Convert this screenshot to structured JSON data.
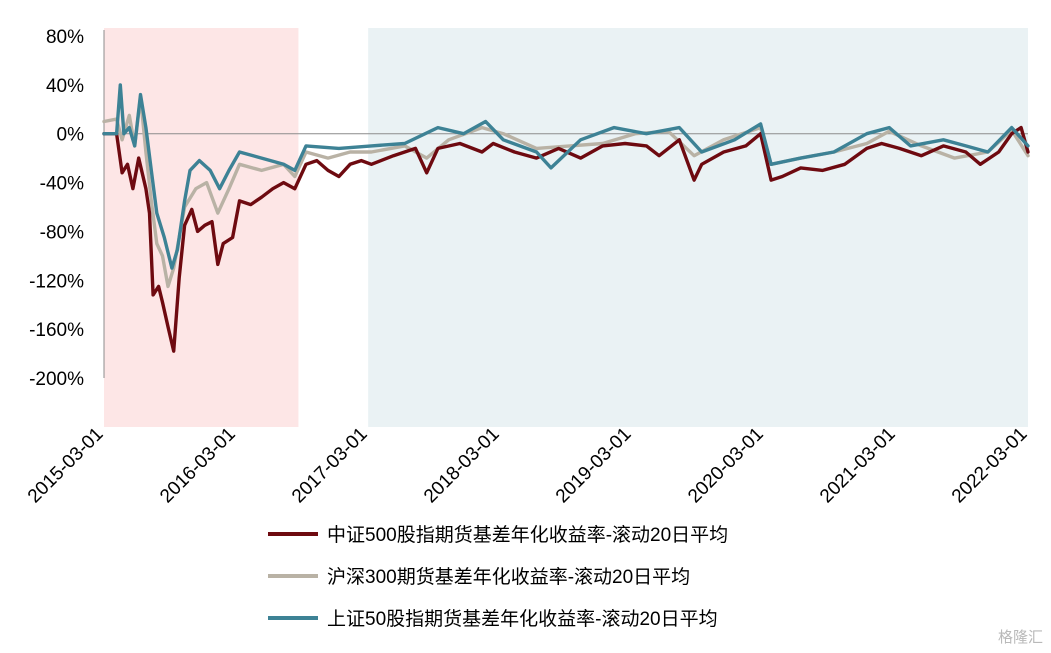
{
  "chart_data": {
    "type": "line",
    "title": "",
    "xlabel": "",
    "ylabel": "",
    "x_start": "2015-03-01",
    "x_end": "2022-03-01",
    "ylim": [
      -200,
      80
    ],
    "y_ticks": [
      80,
      40,
      0,
      -40,
      -80,
      -120,
      -160,
      -200
    ],
    "y_tick_labels": [
      "80%",
      "40%",
      "0%",
      "-40%",
      "-80%",
      "-120%",
      "-160%",
      "-200%"
    ],
    "x_tick_labels": [
      "2015-03-01",
      "2016-03-01",
      "2017-03-01",
      "2018-03-01",
      "2019-03-01",
      "2020-03-01",
      "2021-03-01",
      "2022-03-01"
    ],
    "shaded_regions": [
      {
        "start": "2015-03-01",
        "end": "2016-08-20",
        "color": "#fde6e6"
      },
      {
        "start": "2017-03-01",
        "end": "2022-03-01",
        "color": "#eaf2f4"
      }
    ],
    "legend_position": "bottom",
    "series": [
      {
        "name": "中证500股指期货基差年化收益率-滚动20日平均",
        "color": "#6e0a10",
        "points": [
          [
            "2015-03-01",
            0
          ],
          [
            "2015-04-05",
            0
          ],
          [
            "2015-04-20",
            -32
          ],
          [
            "2015-05-05",
            -25
          ],
          [
            "2015-05-20",
            -45
          ],
          [
            "2015-06-05",
            -20
          ],
          [
            "2015-06-25",
            -45
          ],
          [
            "2015-07-05",
            -65
          ],
          [
            "2015-07-15",
            -132
          ],
          [
            "2015-07-30",
            -125
          ],
          [
            "2015-08-10",
            -138
          ],
          [
            "2015-08-25",
            -158
          ],
          [
            "2015-09-10",
            -178
          ],
          [
            "2015-09-25",
            -118
          ],
          [
            "2015-10-10",
            -75
          ],
          [
            "2015-10-30",
            -62
          ],
          [
            "2015-11-15",
            -80
          ],
          [
            "2015-12-05",
            -75
          ],
          [
            "2015-12-25",
            -72
          ],
          [
            "2016-01-10",
            -107
          ],
          [
            "2016-01-25",
            -90
          ],
          [
            "2016-02-20",
            -85
          ],
          [
            "2016-03-10",
            -55
          ],
          [
            "2016-04-10",
            -58
          ],
          [
            "2016-05-10",
            -52
          ],
          [
            "2016-06-10",
            -45
          ],
          [
            "2016-07-10",
            -40
          ],
          [
            "2016-08-10",
            -45
          ],
          [
            "2016-09-10",
            -25
          ],
          [
            "2016-10-10",
            -22
          ],
          [
            "2016-11-10",
            -30
          ],
          [
            "2016-12-10",
            -35
          ],
          [
            "2017-01-10",
            -25
          ],
          [
            "2017-02-10",
            -22
          ],
          [
            "2017-03-10",
            -25
          ],
          [
            "2017-05-10",
            -18
          ],
          [
            "2017-07-10",
            -12
          ],
          [
            "2017-08-10",
            -32
          ],
          [
            "2017-09-10",
            -12
          ],
          [
            "2017-11-10",
            -8
          ],
          [
            "2018-01-10",
            -15
          ],
          [
            "2018-02-10",
            -8
          ],
          [
            "2018-04-10",
            -15
          ],
          [
            "2018-06-10",
            -20
          ],
          [
            "2018-08-10",
            -12
          ],
          [
            "2018-10-10",
            -20
          ],
          [
            "2018-12-10",
            -10
          ],
          [
            "2019-02-10",
            -8
          ],
          [
            "2019-04-10",
            -10
          ],
          [
            "2019-05-15",
            -18
          ],
          [
            "2019-07-10",
            -5
          ],
          [
            "2019-08-20",
            -38
          ],
          [
            "2019-09-10",
            -25
          ],
          [
            "2019-11-10",
            -15
          ],
          [
            "2020-01-10",
            -10
          ],
          [
            "2020-02-20",
            0
          ],
          [
            "2020-03-20",
            -38
          ],
          [
            "2020-04-20",
            -35
          ],
          [
            "2020-06-10",
            -28
          ],
          [
            "2020-08-10",
            -30
          ],
          [
            "2020-10-10",
            -25
          ],
          [
            "2020-12-10",
            -12
          ],
          [
            "2021-01-20",
            -8
          ],
          [
            "2021-03-10",
            -12
          ],
          [
            "2021-05-10",
            -18
          ],
          [
            "2021-07-10",
            -10
          ],
          [
            "2021-09-10",
            -15
          ],
          [
            "2021-10-20",
            -25
          ],
          [
            "2021-12-10",
            -15
          ],
          [
            "2022-01-15",
            0
          ],
          [
            "2022-02-10",
            5
          ],
          [
            "2022-03-01",
            -15
          ]
        ]
      },
      {
        "name": "沪深300期货基差年化收益率-滚动20日平均",
        "color": "#b9b2a5",
        "points": [
          [
            "2015-03-01",
            10
          ],
          [
            "2015-04-05",
            12
          ],
          [
            "2015-04-20",
            -5
          ],
          [
            "2015-05-10",
            15
          ],
          [
            "2015-05-25",
            -10
          ],
          [
            "2015-06-10",
            30
          ],
          [
            "2015-06-25",
            -15
          ],
          [
            "2015-07-10",
            -55
          ],
          [
            "2015-07-25",
            -90
          ],
          [
            "2015-08-10",
            -100
          ],
          [
            "2015-08-25",
            -125
          ],
          [
            "2015-09-10",
            -110
          ],
          [
            "2015-09-25",
            -85
          ],
          [
            "2015-10-10",
            -60
          ],
          [
            "2015-11-10",
            -45
          ],
          [
            "2015-12-10",
            -40
          ],
          [
            "2016-01-10",
            -65
          ],
          [
            "2016-02-10",
            -45
          ],
          [
            "2016-03-10",
            -25
          ],
          [
            "2016-05-10",
            -30
          ],
          [
            "2016-07-10",
            -25
          ],
          [
            "2016-08-10",
            -35
          ],
          [
            "2016-09-10",
            -15
          ],
          [
            "2016-11-10",
            -20
          ],
          [
            "2017-01-10",
            -15
          ],
          [
            "2017-03-10",
            -15
          ],
          [
            "2017-06-10",
            -10
          ],
          [
            "2017-08-10",
            -20
          ],
          [
            "2017-10-10",
            -5
          ],
          [
            "2018-01-10",
            5
          ],
          [
            "2018-03-10",
            0
          ],
          [
            "2018-06-10",
            -12
          ],
          [
            "2018-09-10",
            -10
          ],
          [
            "2018-12-10",
            -8
          ],
          [
            "2019-03-10",
            0
          ],
          [
            "2019-06-10",
            2
          ],
          [
            "2019-08-20",
            -18
          ],
          [
            "2019-11-10",
            -5
          ],
          [
            "2020-02-20",
            5
          ],
          [
            "2020-03-20",
            -25
          ],
          [
            "2020-06-10",
            -20
          ],
          [
            "2020-09-10",
            -15
          ],
          [
            "2020-12-10",
            -8
          ],
          [
            "2021-02-10",
            2
          ],
          [
            "2021-05-10",
            -10
          ],
          [
            "2021-08-10",
            -20
          ],
          [
            "2021-11-10",
            -15
          ],
          [
            "2022-01-15",
            3
          ],
          [
            "2022-03-01",
            -18
          ]
        ]
      },
      {
        "name": "上证50股指期货基差年化收益率-滚动20日平均",
        "color": "#3d8295",
        "points": [
          [
            "2015-03-01",
            0
          ],
          [
            "2015-04-05",
            0
          ],
          [
            "2015-04-15",
            40
          ],
          [
            "2015-04-25",
            0
          ],
          [
            "2015-05-10",
            5
          ],
          [
            "2015-05-25",
            -10
          ],
          [
            "2015-06-10",
            32
          ],
          [
            "2015-06-25",
            5
          ],
          [
            "2015-07-10",
            -30
          ],
          [
            "2015-07-25",
            -65
          ],
          [
            "2015-08-15",
            -85
          ],
          [
            "2015-09-05",
            -110
          ],
          [
            "2015-09-20",
            -95
          ],
          [
            "2015-10-10",
            -55
          ],
          [
            "2015-10-25",
            -30
          ],
          [
            "2015-11-20",
            -22
          ],
          [
            "2015-12-20",
            -30
          ],
          [
            "2016-01-15",
            -45
          ],
          [
            "2016-02-10",
            -30
          ],
          [
            "2016-03-10",
            -15
          ],
          [
            "2016-05-10",
            -20
          ],
          [
            "2016-07-10",
            -25
          ],
          [
            "2016-08-10",
            -30
          ],
          [
            "2016-09-10",
            -10
          ],
          [
            "2016-12-10",
            -12
          ],
          [
            "2017-03-10",
            -10
          ],
          [
            "2017-06-10",
            -8
          ],
          [
            "2017-09-10",
            5
          ],
          [
            "2017-11-20",
            0
          ],
          [
            "2018-01-20",
            10
          ],
          [
            "2018-03-10",
            -5
          ],
          [
            "2018-06-10",
            -15
          ],
          [
            "2018-07-20",
            -28
          ],
          [
            "2018-10-10",
            -5
          ],
          [
            "2019-01-10",
            5
          ],
          [
            "2019-04-10",
            0
          ],
          [
            "2019-07-10",
            5
          ],
          [
            "2019-09-10",
            -15
          ],
          [
            "2019-12-10",
            -5
          ],
          [
            "2020-02-20",
            8
          ],
          [
            "2020-03-20",
            -25
          ],
          [
            "2020-06-10",
            -20
          ],
          [
            "2020-09-10",
            -15
          ],
          [
            "2020-12-10",
            0
          ],
          [
            "2021-02-10",
            5
          ],
          [
            "2021-04-10",
            -10
          ],
          [
            "2021-07-10",
            -5
          ],
          [
            "2021-09-10",
            -10
          ],
          [
            "2021-11-10",
            -15
          ],
          [
            "2022-01-15",
            5
          ],
          [
            "2022-03-01",
            -10
          ]
        ]
      }
    ]
  },
  "watermark": "格隆汇"
}
